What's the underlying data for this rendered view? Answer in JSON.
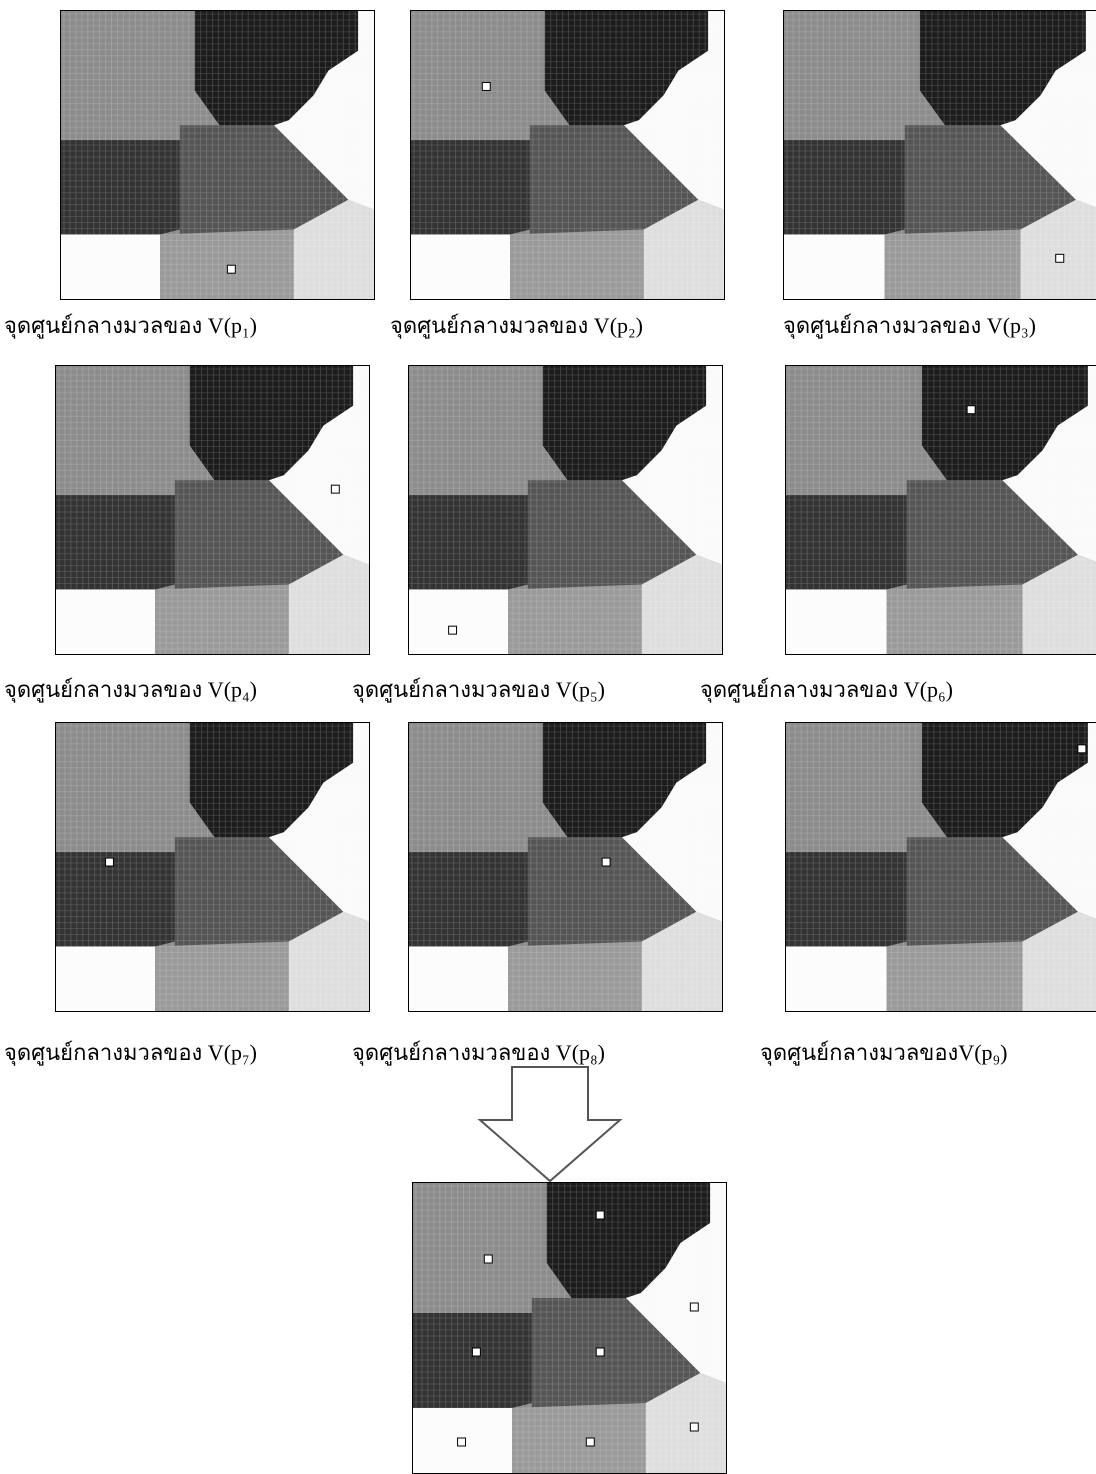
{
  "panels": [
    {
      "caption": "จุดศูนย์กลางมวลของ V(p₁)"
    },
    {
      "caption": "จุดศูนย์กลางมวลของ V(p₂)"
    },
    {
      "caption": "จุดศูนย์กลางมวลของ V(p₃)"
    },
    {
      "caption": "จุดศูนย์กลางมวลของ V(p₄)"
    },
    {
      "caption": "จุดศูนย์กลางมวลของ V(p₅)"
    },
    {
      "caption": "จุดศูนย์กลางมวลของ V(p₆)"
    },
    {
      "caption": "จุดศูนย์กลางมวลของ V(p₇)"
    },
    {
      "caption": "จุดศูนย์กลางมวลของ V(p₈)"
    },
    {
      "caption": "จุดศูนย์กลางมวลของV(p₉)"
    }
  ]
}
